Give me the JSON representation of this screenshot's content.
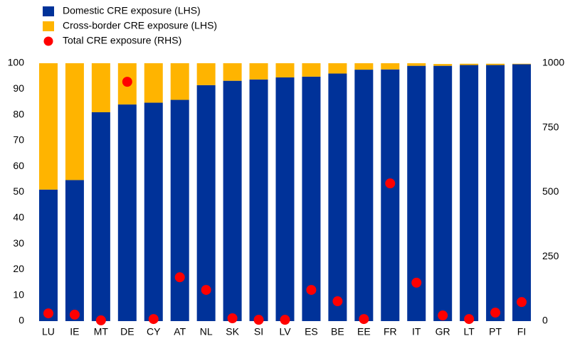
{
  "chart_data": {
    "type": "bar",
    "categories": [
      "LU",
      "IE",
      "MT",
      "DE",
      "CY",
      "AT",
      "NL",
      "SK",
      "SI",
      "LV",
      "ES",
      "BE",
      "EE",
      "FR",
      "IT",
      "GR",
      "LT",
      "PT",
      "FI"
    ],
    "series": [
      {
        "name": "Domestic CRE exposure (LHS)",
        "color": "#003299",
        "values": [
          51,
          54.7,
          81,
          84,
          84.7,
          85.8,
          91.5,
          93.2,
          93.7,
          94.5,
          94.8,
          96,
          97.5,
          97.6,
          99,
          99,
          99.3,
          99.3,
          99.6
        ]
      },
      {
        "name": "Cross-border CRE exposure (LHS)",
        "color": "#ffb400",
        "values": [
          49,
          45.3,
          19,
          16,
          15.3,
          14.2,
          8.5,
          6.8,
          6.3,
          5.5,
          5.2,
          4,
          2.5,
          2.4,
          1,
          0.7,
          0.5,
          0.5,
          0.2
        ]
      },
      {
        "name": "Total CRE exposure (RHS)",
        "color": "#ff0000",
        "axis": "y2",
        "type": "scatter",
        "values": [
          30,
          25,
          3,
          928,
          8,
          170,
          121,
          11,
          5,
          5,
          121,
          77,
          8,
          534,
          149,
          22,
          8,
          33,
          74
        ]
      }
    ],
    "stacked": true,
    "ylim": [
      0,
      100
    ],
    "yticks": [
      0,
      10,
      20,
      30,
      40,
      50,
      60,
      70,
      80,
      90,
      100
    ],
    "y2lim": [
      0,
      1000
    ],
    "y2ticks": [
      0,
      250,
      500,
      750,
      1000
    ],
    "grid": false,
    "legend": "top-left"
  }
}
